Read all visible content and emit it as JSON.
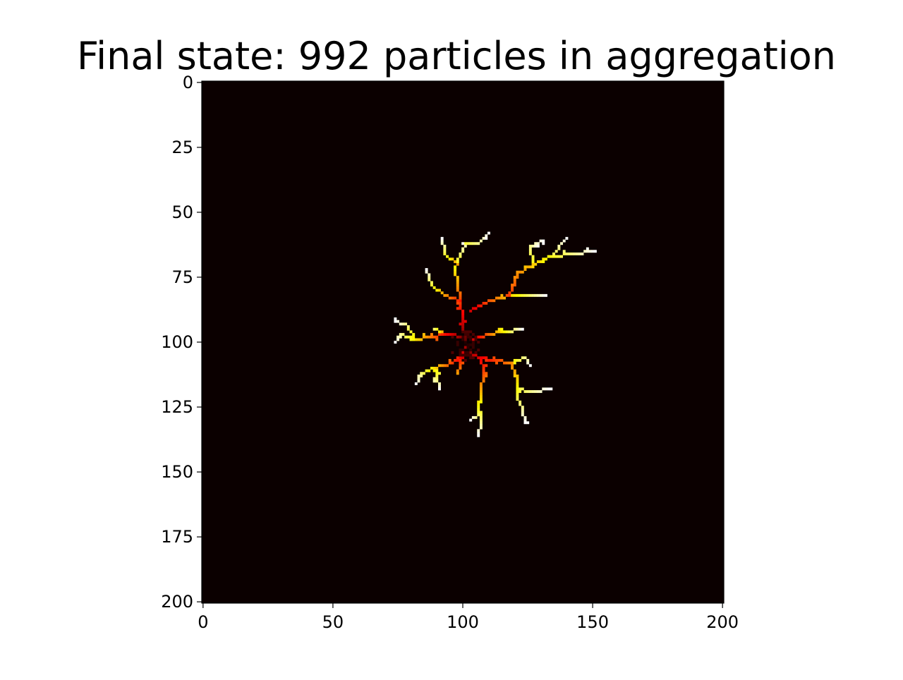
{
  "chart_data": {
    "type": "heatmap",
    "title": "Final state: 992 particles in aggregation",
    "xlabel": "",
    "ylabel": "",
    "grid_size": [
      201,
      201
    ],
    "xlim": [
      0,
      201
    ],
    "ylim": [
      201,
      0
    ],
    "x_ticks": [
      0,
      50,
      100,
      150,
      200
    ],
    "y_ticks": [
      0,
      25,
      50,
      75,
      100,
      125,
      150,
      175,
      200
    ],
    "colormap": "hot",
    "background_color": "#0b0000",
    "grid": false,
    "seed": [
      101,
      101
    ],
    "particle_count": 992,
    "branches": [
      {
        "points": [
          [
            101,
            101
          ],
          [
            100,
            92
          ],
          [
            99,
            84
          ],
          [
            98,
            78
          ],
          [
            97,
            72
          ],
          [
            99,
            66
          ],
          [
            101,
            62
          ]
        ],
        "age_start": 0.1,
        "age_end": 0.95
      },
      {
        "points": [
          [
            99,
            84
          ],
          [
            93,
            82
          ],
          [
            88,
            78
          ],
          [
            86,
            72
          ]
        ],
        "age_start": 0.4,
        "age_end": 1.0
      },
      {
        "points": [
          [
            101,
            62
          ],
          [
            106,
            62
          ],
          [
            110,
            58
          ]
        ],
        "age_start": 0.8,
        "age_end": 1.0
      },
      {
        "points": [
          [
            98,
            70
          ],
          [
            93,
            66
          ],
          [
            92,
            60
          ]
        ],
        "age_start": 0.6,
        "age_end": 1.0
      },
      {
        "points": [
          [
            103,
            88
          ],
          [
            110,
            84
          ],
          [
            118,
            82
          ],
          [
            126,
            82
          ],
          [
            132,
            82
          ]
        ],
        "age_start": 0.3,
        "age_end": 1.0
      },
      {
        "points": [
          [
            118,
            82
          ],
          [
            121,
            74
          ],
          [
            127,
            70
          ],
          [
            134,
            67
          ],
          [
            142,
            66
          ],
          [
            151,
            65
          ]
        ],
        "age_start": 0.45,
        "age_end": 1.0
      },
      {
        "points": [
          [
            127,
            70
          ],
          [
            126,
            63
          ],
          [
            131,
            61
          ]
        ],
        "age_start": 0.75,
        "age_end": 1.0
      },
      {
        "points": [
          [
            134,
            67
          ],
          [
            140,
            60
          ]
        ],
        "age_start": 0.8,
        "age_end": 1.0
      },
      {
        "points": [
          [
            101,
            98
          ],
          [
            94,
            97
          ],
          [
            87,
            98
          ],
          [
            82,
            99
          ],
          [
            76,
            97
          ],
          [
            74,
            100
          ]
        ],
        "age_start": 0.15,
        "age_end": 1.0
      },
      {
        "points": [
          [
            82,
            99
          ],
          [
            78,
            93
          ],
          [
            74,
            92
          ]
        ],
        "age_start": 0.7,
        "age_end": 1.0
      },
      {
        "points": [
          [
            94,
            97
          ],
          [
            89,
            95
          ]
        ],
        "age_start": 0.5,
        "age_end": 0.85
      },
      {
        "points": [
          [
            103,
            104
          ],
          [
            96,
            108
          ],
          [
            89,
            110
          ],
          [
            84,
            112
          ],
          [
            82,
            116
          ]
        ],
        "age_start": 0.2,
        "age_end": 1.0
      },
      {
        "points": [
          [
            89,
            110
          ],
          [
            91,
            118
          ]
        ],
        "age_start": 0.7,
        "age_end": 1.0
      },
      {
        "points": [
          [
            104,
            99
          ],
          [
            110,
            97
          ],
          [
            115,
            96
          ],
          [
            123,
            95
          ]
        ],
        "age_start": 0.3,
        "age_end": 1.0
      },
      {
        "points": [
          [
            103,
            104
          ],
          [
            107,
            106
          ],
          [
            108,
            112
          ],
          [
            107,
            119
          ],
          [
            106,
            125
          ],
          [
            107,
            131
          ],
          [
            106,
            136
          ]
        ],
        "age_start": 0.25,
        "age_end": 1.0
      },
      {
        "points": [
          [
            107,
            127
          ],
          [
            103,
            130
          ]
        ],
        "age_start": 0.8,
        "age_end": 1.0
      },
      {
        "points": [
          [
            107,
            106
          ],
          [
            113,
            107
          ],
          [
            118,
            108
          ],
          [
            121,
            113
          ],
          [
            121,
            121
          ],
          [
            123,
            126
          ],
          [
            124,
            131
          ]
        ],
        "age_start": 0.35,
        "age_end": 1.0
      },
      {
        "points": [
          [
            121,
            118
          ],
          [
            127,
            119
          ],
          [
            133,
            118
          ]
        ],
        "age_start": 0.8,
        "age_end": 1.0
      },
      {
        "points": [
          [
            118,
            108
          ],
          [
            124,
            106
          ],
          [
            126,
            109
          ]
        ],
        "age_start": 0.7,
        "age_end": 1.0
      },
      {
        "points": [
          [
            101,
            101
          ],
          [
            99,
            108
          ],
          [
            98,
            112
          ]
        ],
        "age_start": 0.2,
        "age_end": 0.6
      }
    ]
  }
}
